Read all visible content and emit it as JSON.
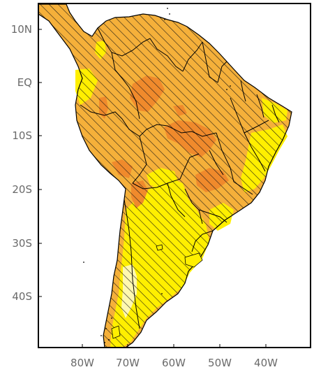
{
  "map": {
    "lat_labels": [
      "10N",
      "EQ",
      "10S",
      "20S",
      "30S",
      "40S"
    ],
    "lon_labels": [
      "80W",
      "70W",
      "60W",
      "50W",
      "40W"
    ],
    "colors": {
      "high_orange": "#f08a2c",
      "mid_orange": "#f5b03a",
      "yellow": "#ffef00",
      "pale_yellow": "#fff8b0",
      "border": "#000000",
      "frame": "#000000"
    },
    "hatching": "diagonal"
  }
}
